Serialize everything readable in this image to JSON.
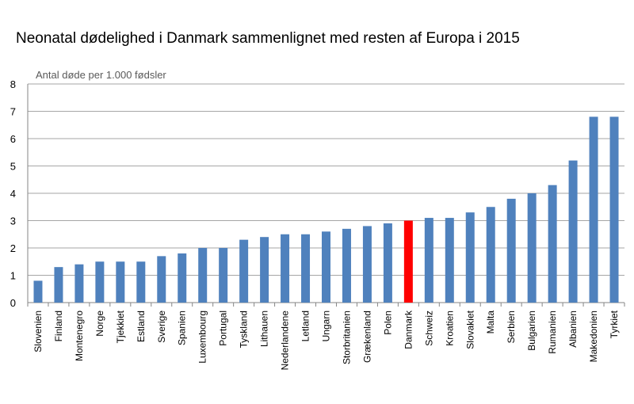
{
  "chart_data": {
    "type": "bar",
    "title": "Neonatal dødelighed i Danmark sammenlignet med resten af Europa i 2015",
    "ylabel": "Antal døde per 1.000 fødsler",
    "xlabel": "",
    "ylim": [
      0,
      8
    ],
    "yticks": [
      0,
      1,
      2,
      3,
      4,
      5,
      6,
      7,
      8
    ],
    "grid": true,
    "legend": "none",
    "categories": [
      "Slovenien",
      "Finland",
      "Montenegro",
      "Norge",
      "Tjekkiet",
      "Estland",
      "Sverige",
      "Spanien",
      "Luxembourg",
      "Portugal",
      "Tyskland",
      "Lithauen",
      "Nederlandene",
      "Letland",
      "Ungarn",
      "Storbritanien",
      "Grækenland",
      "Polen",
      "Danmark",
      "Schweiz",
      "Kroatien",
      "Slovakiet",
      "Malta",
      "Serbien",
      "Bulgarien",
      "Rumanien",
      "Albanien",
      "Makedonien",
      "Tyrkiet"
    ],
    "values": [
      0.8,
      1.3,
      1.4,
      1.5,
      1.5,
      1.5,
      1.7,
      1.8,
      2.0,
      2.0,
      2.3,
      2.4,
      2.5,
      2.5,
      2.6,
      2.7,
      2.8,
      2.9,
      3.0,
      3.1,
      3.1,
      3.3,
      3.5,
      3.8,
      4.0,
      4.3,
      5.2,
      6.8,
      6.8
    ],
    "highlight_category": "Danmark",
    "colors": {
      "bar": "#4f81bd",
      "highlight": "#ff0000",
      "grid": "#a6a6a6",
      "axis": "#868686"
    }
  }
}
